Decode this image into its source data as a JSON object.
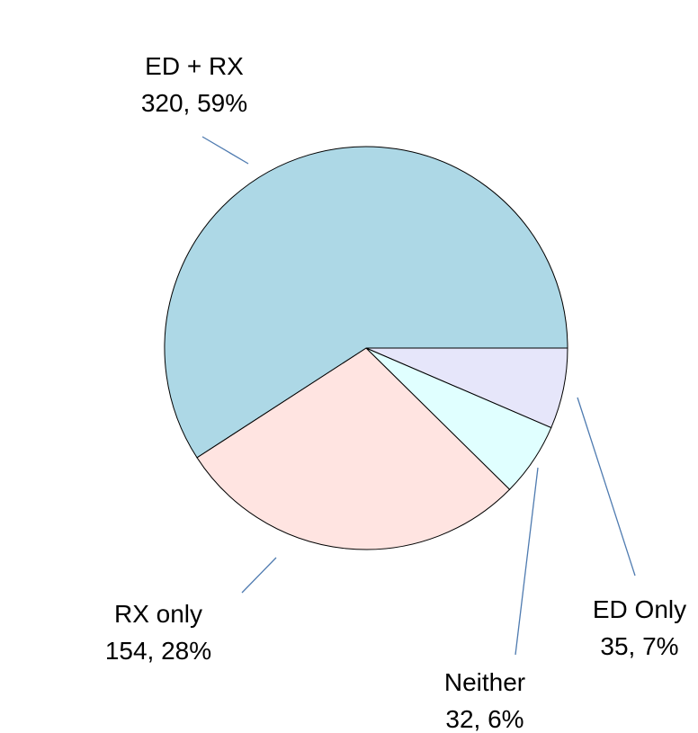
{
  "chart_data": {
    "type": "pie",
    "title": "",
    "slices": [
      {
        "name": "ED Only",
        "value": 35,
        "pct_label": "35, 7%",
        "color": "#e6e6fa"
      },
      {
        "name": "Neither",
        "value": 32,
        "pct_label": "32, 6%",
        "color": "#e0ffff"
      },
      {
        "name": "RX only",
        "value": 154,
        "pct_label": "154, 28%",
        "color": "#ffe4e1"
      },
      {
        "name": "ED + RX",
        "value": 320,
        "pct_label": "320, 59%",
        "color": "#add8e6"
      }
    ],
    "start_angle_deg": 0,
    "direction": "clockwise",
    "legend": "none"
  }
}
